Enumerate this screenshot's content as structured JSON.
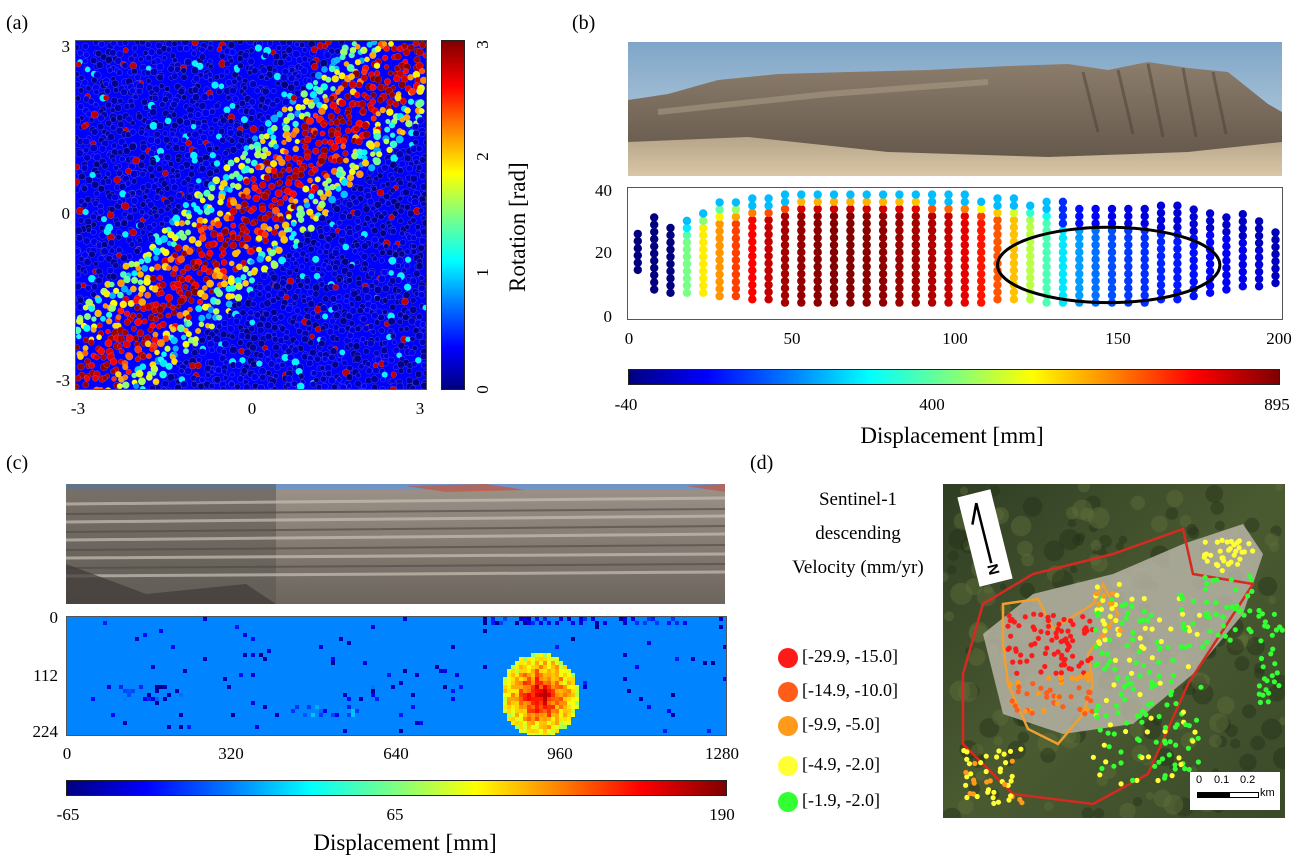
{
  "panels": {
    "a": "(a)",
    "b": "(b)",
    "c": "(c)",
    "d": "(d)"
  },
  "colors": {
    "jet": [
      "#00007f",
      "#0000ff",
      "#007fff",
      "#00ffff",
      "#7fff7f",
      "#ffff00",
      "#ff7f00",
      "#ff0000",
      "#7f0000"
    ],
    "legend_d": [
      "#ff1a1a",
      "#ff5c1a",
      "#ff9a1a",
      "#ffff33",
      "#33ff33"
    ],
    "outline_red": "#d42a20",
    "outline_orange": "#f0a030"
  },
  "chart_data": [
    {
      "id": "a",
      "type": "heatmap",
      "title": "",
      "xlabel": "",
      "ylabel": "",
      "x_ticks": [
        "-3",
        "0",
        "3"
      ],
      "y_ticks": [
        "3",
        "0",
        "-3"
      ],
      "xlim": [
        -3,
        3
      ],
      "ylim": [
        -3,
        3
      ],
      "description_value": "particle rotation field with a diagonal shear band from lower-left to upper-right",
      "band": {
        "from": [
          -3,
          -3
        ],
        "to": [
          3,
          3
        ],
        "core_value": 3,
        "background_value": 0
      },
      "colorbar": {
        "label": "Rotation [rad]",
        "ticks": [
          "3",
          "2",
          "1",
          "0"
        ],
        "range": [
          0,
          3
        ],
        "orientation": "vertical"
      }
    },
    {
      "id": "b",
      "type": "scatter",
      "title": "",
      "xlabel": "",
      "ylabel": "",
      "x_ticks": [
        "0",
        "50",
        "100",
        "150",
        "200"
      ],
      "y_ticks": [
        "40",
        "20",
        "0"
      ],
      "xlim": [
        0,
        200
      ],
      "ylim": [
        0,
        40
      ],
      "colorbar": {
        "label": "Displacement [mm]",
        "ticks": [
          "-40",
          "400",
          "895"
        ],
        "range": [
          -40,
          895
        ],
        "orientation": "horizontal"
      },
      "ellipse": {
        "cx": 147,
        "cy": 16.5,
        "rx": 34,
        "ry": 11.5
      },
      "columns": [
        {
          "x": 3,
          "ymin": 15,
          "ymax": 27,
          "value": -40
        },
        {
          "x": 8,
          "ymin": 9,
          "ymax": 31,
          "value": -35
        },
        {
          "x": 13,
          "ymin": 8,
          "ymax": 28,
          "value": -20
        },
        {
          "x": 18,
          "ymin": 8,
          "ymax": 31,
          "value": 420
        },
        {
          "x": 23,
          "ymin": 8,
          "ymax": 34,
          "value": 560
        },
        {
          "x": 28,
          "ymin": 7,
          "ymax": 36,
          "value": 640
        },
        {
          "x": 33,
          "ymin": 7,
          "ymax": 36,
          "value": 720
        },
        {
          "x": 38,
          "ymin": 6,
          "ymax": 37,
          "value": 780
        },
        {
          "x": 43,
          "ymin": 6,
          "ymax": 37,
          "value": 830
        },
        {
          "x": 48,
          "ymin": 5,
          "ymax": 38,
          "value": 860
        },
        {
          "x": 53,
          "ymin": 5,
          "ymax": 39,
          "value": 875
        },
        {
          "x": 58,
          "ymin": 5,
          "ymax": 39,
          "value": 885
        },
        {
          "x": 63,
          "ymin": 5,
          "ymax": 39,
          "value": 890
        },
        {
          "x": 68,
          "ymin": 5,
          "ymax": 39,
          "value": 890
        },
        {
          "x": 73,
          "ymin": 5,
          "ymax": 39,
          "value": 885
        },
        {
          "x": 78,
          "ymin": 5,
          "ymax": 39,
          "value": 880
        },
        {
          "x": 83,
          "ymin": 5,
          "ymax": 39,
          "value": 870
        },
        {
          "x": 88,
          "ymin": 5,
          "ymax": 39,
          "value": 860
        },
        {
          "x": 93,
          "ymin": 5,
          "ymax": 38,
          "value": 850
        },
        {
          "x": 98,
          "ymin": 5,
          "ymax": 38,
          "value": 830
        },
        {
          "x": 103,
          "ymin": 5,
          "ymax": 38,
          "value": 800
        },
        {
          "x": 108,
          "ymin": 5,
          "ymax": 37,
          "value": 760
        },
        {
          "x": 113,
          "ymin": 6,
          "ymax": 37,
          "value": 700
        },
        {
          "x": 118,
          "ymin": 6,
          "ymax": 37,
          "value": 600
        },
        {
          "x": 123,
          "ymin": 6,
          "ymax": 36,
          "value": 480
        },
        {
          "x": 128,
          "ymin": 5,
          "ymax": 36,
          "value": 380
        },
        {
          "x": 133,
          "ymin": 5,
          "ymax": 36,
          "value": 290
        },
        {
          "x": 138,
          "ymin": 5,
          "ymax": 35,
          "value": 220
        },
        {
          "x": 143,
          "ymin": 5,
          "ymax": 35,
          "value": 180
        },
        {
          "x": 148,
          "ymin": 5,
          "ymax": 35,
          "value": 150
        },
        {
          "x": 153,
          "ymin": 5,
          "ymax": 35,
          "value": 130
        },
        {
          "x": 158,
          "ymin": 5,
          "ymax": 35,
          "value": 120
        },
        {
          "x": 163,
          "ymin": 6,
          "ymax": 35,
          "value": 110
        },
        {
          "x": 168,
          "ymin": 6,
          "ymax": 35,
          "value": 100
        },
        {
          "x": 173,
          "ymin": 7,
          "ymax": 34,
          "value": 90
        },
        {
          "x": 178,
          "ymin": 8,
          "ymax": 34,
          "value": 80
        },
        {
          "x": 183,
          "ymin": 9,
          "ymax": 33,
          "value": 70
        },
        {
          "x": 188,
          "ymin": 10,
          "ymax": 33,
          "value": 60
        },
        {
          "x": 193,
          "ymin": 10,
          "ymax": 31,
          "value": 40
        },
        {
          "x": 198,
          "ymin": 11,
          "ymax": 27,
          "value": 20
        }
      ]
    },
    {
      "id": "c",
      "type": "heatmap",
      "title": "",
      "xlabel": "",
      "ylabel": "",
      "x_ticks": [
        "0",
        "320",
        "640",
        "960",
        "1280"
      ],
      "y_ticks": [
        "0",
        "112",
        "224"
      ],
      "xlim": [
        0,
        1280
      ],
      "ylim": [
        224,
        0
      ],
      "background_value": 0,
      "anomaly": {
        "x_center": 915,
        "y_center": 145,
        "x_radius": 75,
        "y_radius": 80,
        "peak_value": 190
      },
      "colorbar": {
        "label": "Displacement [mm]",
        "ticks": [
          "-65",
          "65",
          "190"
        ],
        "range": [
          -65,
          190
        ],
        "orientation": "horizontal"
      }
    },
    {
      "id": "d",
      "type": "scatter",
      "title": "Sentinel-1 descending Velocity (mm/yr)",
      "title_lines": [
        "Sentinel-1",
        "descending",
        "Velocity (mm/yr)"
      ],
      "legend": [
        {
          "label": "[-29.9, -15.0]",
          "color": "#ff1a1a"
        },
        {
          "label": "[-14.9, -10.0]",
          "color": "#ff5c1a"
        },
        {
          "label": "[-9.9, -5.0]",
          "color": "#ff9a1a"
        },
        {
          "label": "[-4.9, -2.0]",
          "color": "#ffff33"
        },
        {
          "label": "[-1.9, -2.0]",
          "color": "#33ff33"
        }
      ],
      "north_label": "N",
      "scale_bar": {
        "ticks": [
          "0",
          "0.1",
          "0.2"
        ],
        "unit": "km"
      }
    }
  ]
}
